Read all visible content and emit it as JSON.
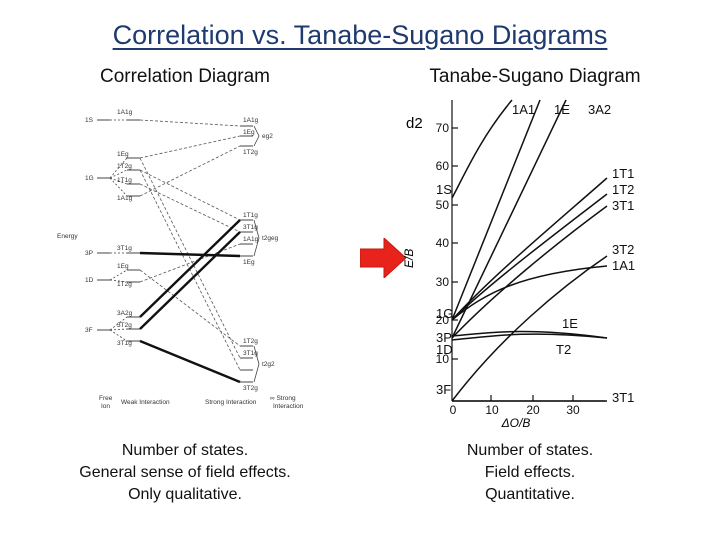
{
  "slide_title": "Correlation vs. Tanabe-Sugano Diagrams",
  "left": {
    "heading": "Correlation Diagram",
    "caption_lines": [
      "Number of states.",
      "General sense of field effects.",
      "Only qualitative."
    ],
    "free_ion_terms": [
      "1S",
      "1G",
      "3P",
      "1D",
      "3F"
    ],
    "weak_terms": [
      "1A1g",
      "1Eg",
      "1T2g",
      "1T1g",
      "1A1g",
      "3T1g",
      "1Eg",
      "1T2g",
      "3A2g",
      "3T2g",
      "3T1g"
    ],
    "strong_terms": [
      "1A1g",
      "1Eg",
      "1T2g",
      "1T1g",
      "3T1g",
      "1A1g",
      "1Eg",
      "1T2g",
      "3T1g",
      "3T2g"
    ],
    "strong_configs": [
      "eg2",
      "t2geg",
      "t2g2"
    ],
    "y_axis_label": "Energy",
    "bottom_labels": {
      "free_ion": [
        "Free",
        "Ion"
      ],
      "weak": "Weak Interaction",
      "strong": "Strong Interaction",
      "infinite": [
        "∞ Strong",
        "Interaction"
      ]
    }
  },
  "arrow": {
    "icon": "right-arrow-icon",
    "color": "#e8231b"
  },
  "right": {
    "heading": "Tanabe-Sugano Diagram",
    "caption_lines": [
      "Number of states.",
      "Field effects.",
      "Quantitative."
    ],
    "config_label": "d2",
    "y_axis_label": "E/B",
    "x_axis_label": "ΔO/B",
    "y_ticks": [
      "70",
      "60",
      "50",
      "40",
      "30",
      "20",
      "10"
    ],
    "x_ticks": [
      "0",
      "10",
      "20",
      "30"
    ],
    "left_term_labels": [
      "1S",
      "1G",
      "3P",
      "1D",
      "3F"
    ],
    "top_labels": [
      "1A1",
      "1E",
      "3A2"
    ],
    "right_labels": [
      "1T1",
      "1T2",
      "3T1",
      "3T2",
      "1A1",
      "1E",
      "T2",
      "3T1"
    ]
  }
}
